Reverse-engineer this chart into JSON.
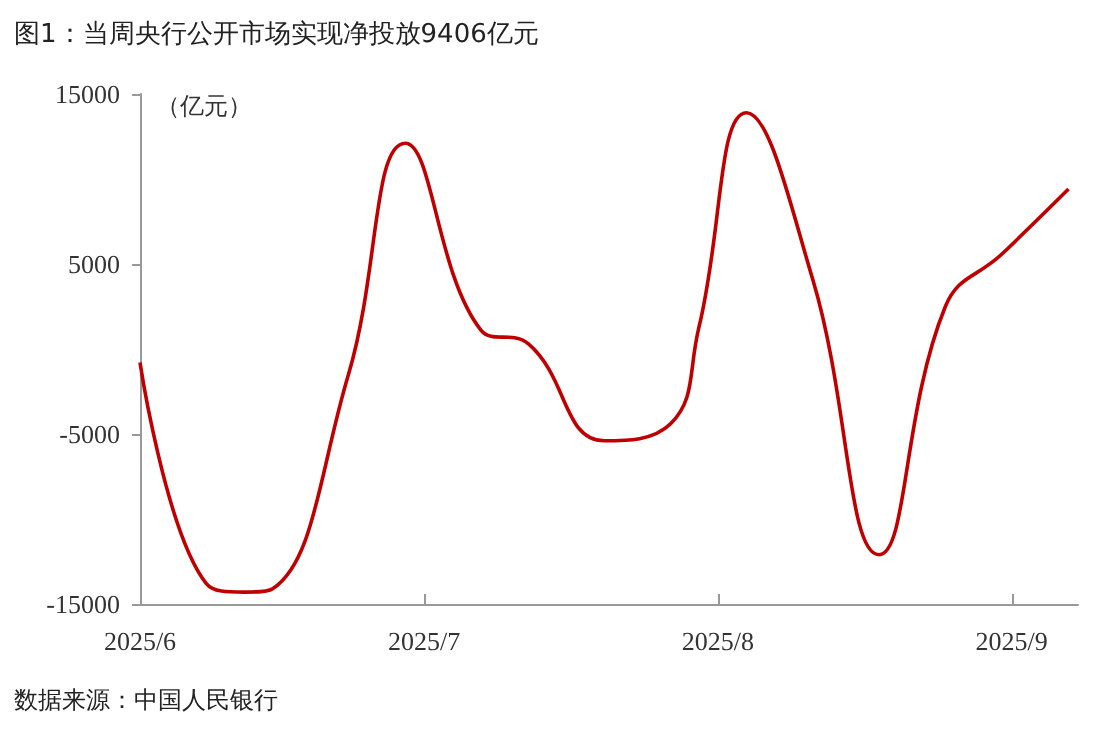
{
  "chart_data": {
    "type": "line",
    "title": "图1：当周央行公开市场实现净投放9406亿元",
    "ylabel": "（亿元）",
    "annotations": [
      "数据来源：中国人民银行"
    ],
    "x": [
      "2025-06-01",
      "2025-06-08",
      "2025-06-12",
      "2025-06-15",
      "2025-06-23",
      "2025-06-29",
      "2025-07-07",
      "2025-07-12",
      "2025-07-20",
      "2025-07-27",
      "2025-07-30",
      "2025-08-04",
      "2025-08-11",
      "2025-08-18",
      "2025-08-25",
      "2025-08-31",
      "2025-09-07"
    ],
    "series": [
      {
        "color": "#c00000",
        "values": [
          -800,
          -13800,
          -14300,
          -14100,
          -1500,
          12100,
          1100,
          300,
          -5400,
          -4400,
          1300,
          13900,
          4100,
          -12100,
          2500,
          5600,
          9406
        ]
      }
    ],
    "xlim": [
      "2025-06-01",
      "2025-09-08"
    ],
    "xticks": [
      {
        "value": "2025-06-01",
        "label": "2025/6"
      },
      {
        "value": "2025-07-01",
        "label": "2025/7"
      },
      {
        "value": "2025-08-01",
        "label": "2025/8"
      },
      {
        "value": "2025-09-01",
        "label": "2025/9"
      }
    ],
    "ylim": [
      -15000,
      15000
    ],
    "yticks": [
      -15000,
      -5000,
      5000,
      15000
    ],
    "grid": false,
    "marker": "none",
    "line_style": "solid"
  }
}
